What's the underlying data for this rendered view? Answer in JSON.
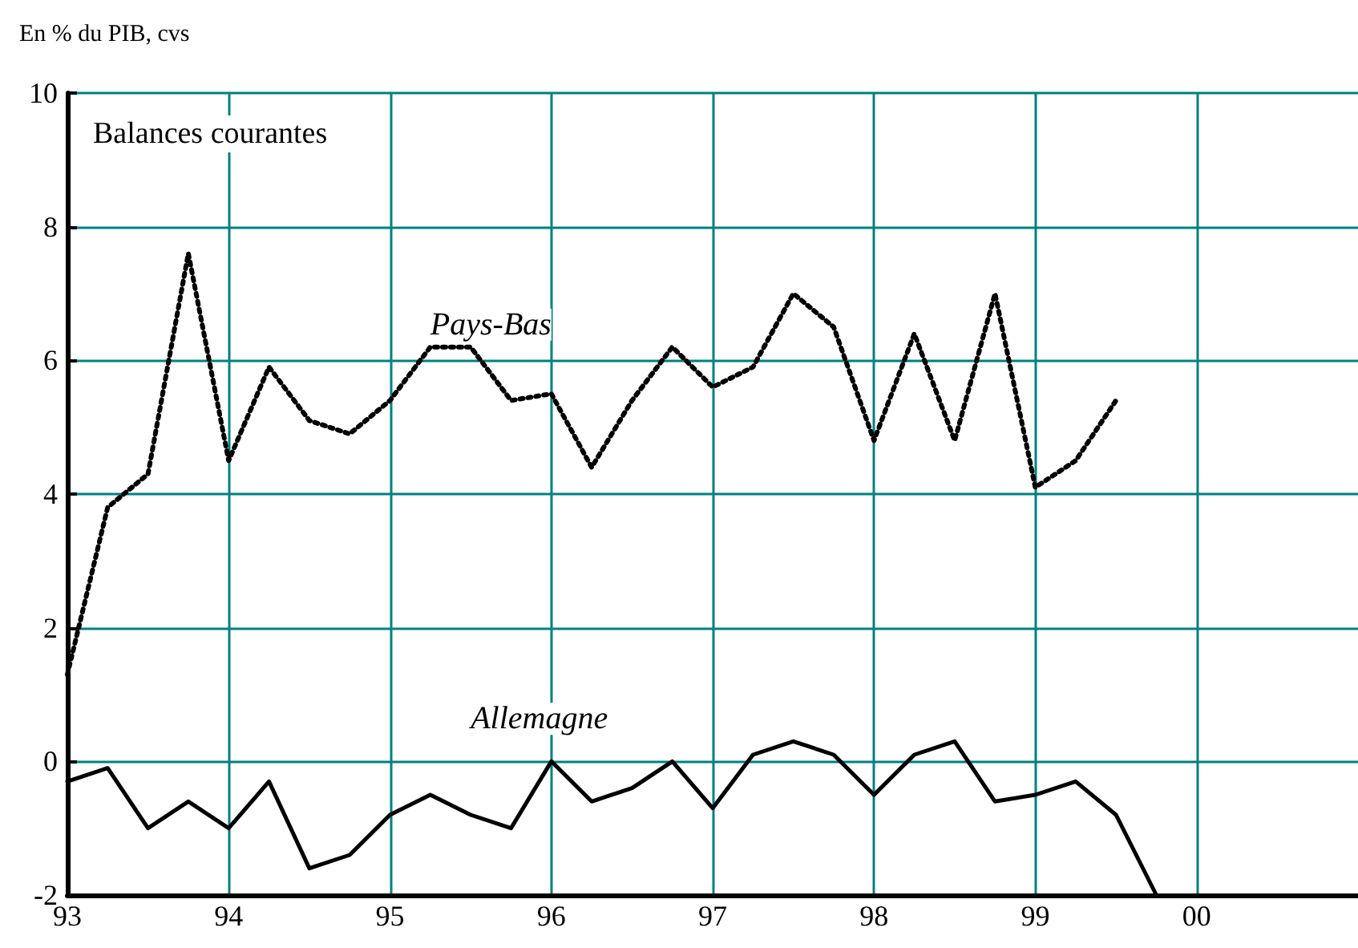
{
  "chart_data": {
    "type": "line",
    "title": "Balances courantes",
    "ylabel": "En % du PIB, cvs",
    "xlim": [
      1993,
      2001
    ],
    "xticks": [
      {
        "value": 1993,
        "label": "93"
      },
      {
        "value": 1994,
        "label": "94"
      },
      {
        "value": 1995,
        "label": "95"
      },
      {
        "value": 1996,
        "label": "96"
      },
      {
        "value": 1997,
        "label": "97"
      },
      {
        "value": 1998,
        "label": "98"
      },
      {
        "value": 1999,
        "label": "99"
      },
      {
        "value": 2000,
        "label": "00"
      }
    ],
    "ylim": [
      -2,
      10
    ],
    "yticks": [
      -2,
      0,
      2,
      4,
      6,
      8,
      10
    ],
    "grid": true,
    "legend": false,
    "marker": "none",
    "series": [
      {
        "name": "Pays-Bas",
        "color": "#000000",
        "line_style": "dotted",
        "x": [
          1993,
          1993.25,
          1993.5,
          1993.75,
          1994,
          1994.25,
          1994.5,
          1994.75,
          1995,
          1995.25,
          1995.5,
          1995.75,
          1996,
          1996.25,
          1996.5,
          1996.75,
          1997,
          1997.25,
          1997.5,
          1997.75,
          1998,
          1998.25,
          1998.5,
          1998.75,
          1999,
          1999.25,
          1999.5
        ],
        "values": [
          1.3,
          3.8,
          4.3,
          7.6,
          4.5,
          5.9,
          5.1,
          4.9,
          5.4,
          6.2,
          6.2,
          5.4,
          5.5,
          4.4,
          5.4,
          6.2,
          5.6,
          5.9,
          7.0,
          6.5,
          4.8,
          6.4,
          4.8,
          7.0,
          4.1,
          4.5,
          5.4
        ]
      },
      {
        "name": "Allemagne",
        "color": "#000000",
        "line_style": "solid",
        "x": [
          1993,
          1993.25,
          1993.5,
          1993.75,
          1994,
          1994.25,
          1994.5,
          1994.75,
          1995,
          1995.25,
          1995.5,
          1995.75,
          1996,
          1996.25,
          1996.5,
          1996.75,
          1997,
          1997.25,
          1997.5,
          1997.75,
          1998,
          1998.25,
          1998.5,
          1998.75,
          1999,
          1999.25,
          1999.5,
          1999.75
        ],
        "values": [
          -0.3,
          -0.1,
          -1.0,
          -0.6,
          -1.0,
          -0.3,
          -1.6,
          -1.4,
          -0.8,
          -0.5,
          -0.8,
          -1.0,
          0,
          -0.6,
          -0.4,
          0,
          -0.7,
          0.1,
          0.3,
          0.1,
          -0.5,
          0.1,
          0.3,
          -0.6,
          -0.5,
          -0.3,
          -0.8,
          -2.0
        ]
      }
    ]
  }
}
